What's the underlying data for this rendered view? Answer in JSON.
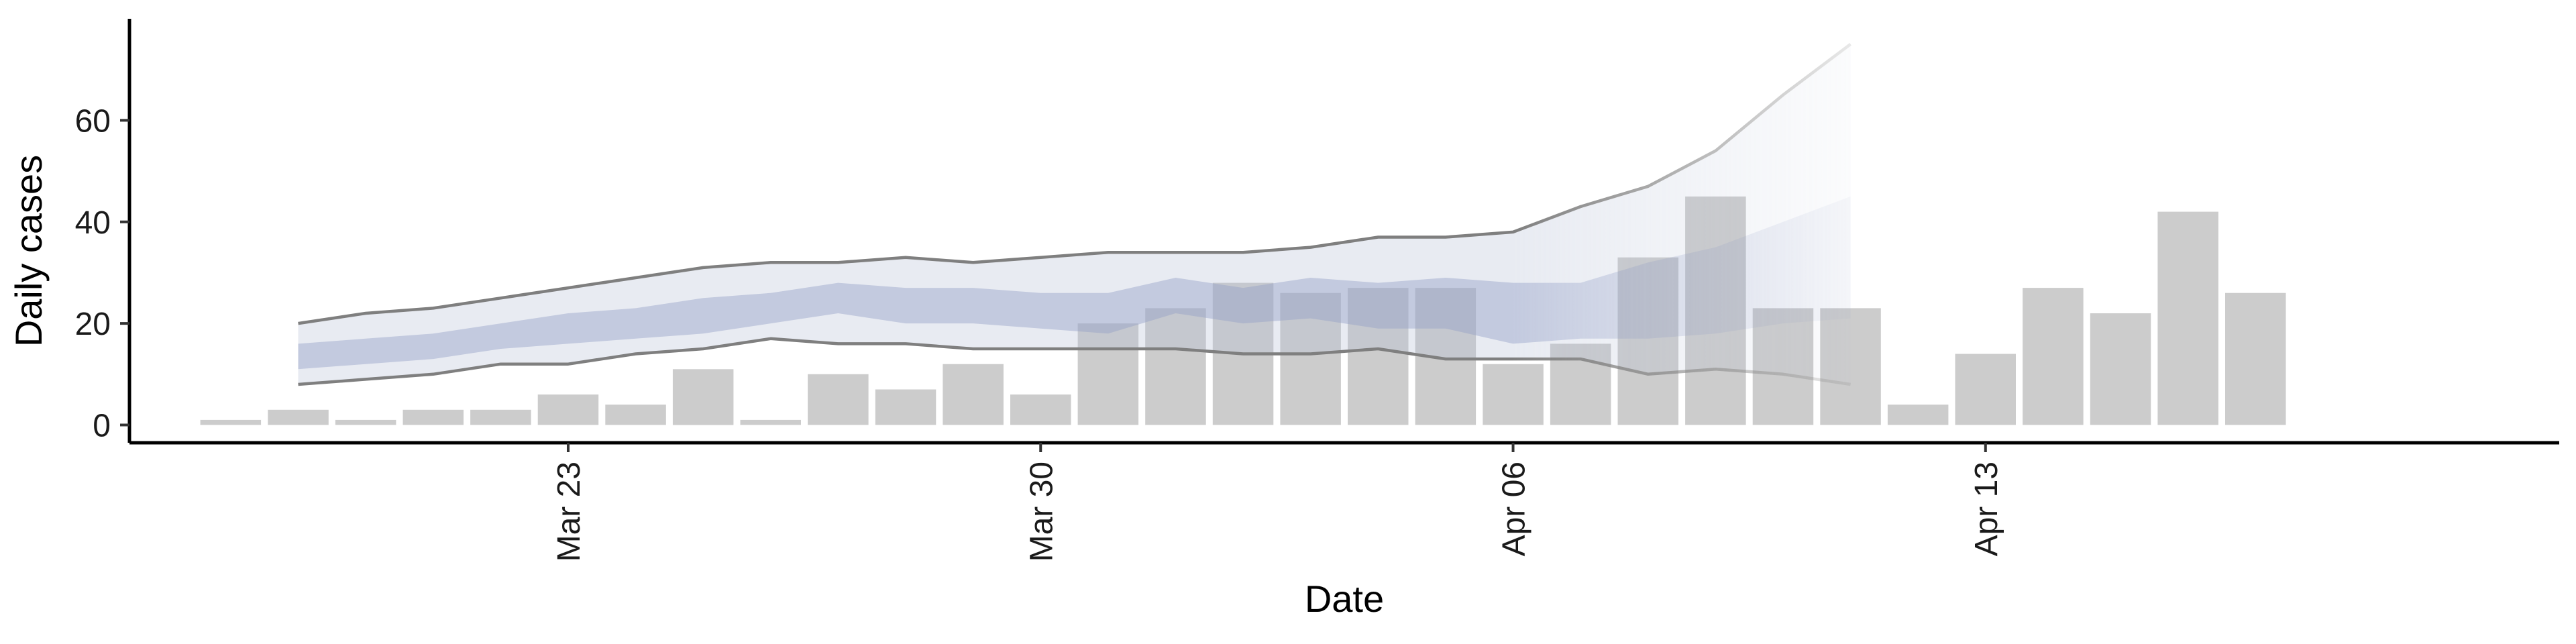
{
  "chart_data": {
    "type": "bar",
    "xlabel": "Date",
    "ylabel": "Daily cases",
    "ylim": [
      0,
      80
    ],
    "xlim": [
      "2020-03-16T12:00",
      "2020-04-21T12:00"
    ],
    "x_ticks": [
      {
        "date": "2020-03-23",
        "label": "Mar 23"
      },
      {
        "date": "2020-03-30",
        "label": "Mar 30"
      },
      {
        "date": "2020-04-06",
        "label": "Apr 06"
      },
      {
        "date": "2020-04-13",
        "label": "Apr 13"
      }
    ],
    "y_ticks": [
      0,
      20,
      40,
      60
    ],
    "grid": false,
    "colors": {
      "bars": "#cccccc",
      "band_outer": "#b9c0d6",
      "band_inner": "#8f9cc4",
      "bound_line": "#7f7f7f"
    },
    "bars": [
      {
        "date": "2020-03-18",
        "value": 1
      },
      {
        "date": "2020-03-19",
        "value": 3
      },
      {
        "date": "2020-03-20",
        "value": 1
      },
      {
        "date": "2020-03-21",
        "value": 3
      },
      {
        "date": "2020-03-22",
        "value": 3
      },
      {
        "date": "2020-03-23",
        "value": 6
      },
      {
        "date": "2020-03-24",
        "value": 4
      },
      {
        "date": "2020-03-25",
        "value": 11
      },
      {
        "date": "2020-03-26",
        "value": 1
      },
      {
        "date": "2020-03-27",
        "value": 10
      },
      {
        "date": "2020-03-28",
        "value": 7
      },
      {
        "date": "2020-03-29",
        "value": 12
      },
      {
        "date": "2020-03-30",
        "value": 6
      },
      {
        "date": "2020-03-31",
        "value": 20
      },
      {
        "date": "2020-04-01",
        "value": 23
      },
      {
        "date": "2020-04-02",
        "value": 28
      },
      {
        "date": "2020-04-03",
        "value": 26
      },
      {
        "date": "2020-04-04",
        "value": 27
      },
      {
        "date": "2020-04-05",
        "value": 27
      },
      {
        "date": "2020-04-06",
        "value": 12
      },
      {
        "date": "2020-04-07",
        "value": 16
      },
      {
        "date": "2020-04-08",
        "value": 33
      },
      {
        "date": "2020-04-09",
        "value": 45
      },
      {
        "date": "2020-04-10",
        "value": 23
      },
      {
        "date": "2020-04-11",
        "value": 23
      },
      {
        "date": "2020-04-12",
        "value": 4
      },
      {
        "date": "2020-04-13",
        "value": 14
      },
      {
        "date": "2020-04-14",
        "value": 27
      },
      {
        "date": "2020-04-15",
        "value": 22
      },
      {
        "date": "2020-04-16",
        "value": 42
      },
      {
        "date": "2020-04-17",
        "value": 26
      }
    ],
    "bands": {
      "dates": [
        "2020-03-19",
        "2020-03-20",
        "2020-03-21",
        "2020-03-22",
        "2020-03-23",
        "2020-03-24",
        "2020-03-25",
        "2020-03-26",
        "2020-03-27",
        "2020-03-28",
        "2020-03-29",
        "2020-03-30",
        "2020-03-31",
        "2020-04-01",
        "2020-04-02",
        "2020-04-03",
        "2020-04-04",
        "2020-04-05",
        "2020-04-06",
        "2020-04-07",
        "2020-04-08",
        "2020-04-09",
        "2020-04-10",
        "2020-04-11"
      ],
      "outer_upper": [
        20,
        22,
        23,
        25,
        27,
        29,
        31,
        32,
        32,
        33,
        32,
        33,
        34,
        34,
        34,
        35,
        37,
        37,
        38,
        43,
        47,
        54,
        65,
        75
      ],
      "outer_lower": [
        8,
        9,
        10,
        12,
        12,
        14,
        15,
        17,
        16,
        16,
        15,
        15,
        15,
        15,
        14,
        14,
        15,
        13,
        13,
        13,
        10,
        11,
        10,
        8
      ],
      "inner_upper": [
        16,
        17,
        18,
        20,
        22,
        23,
        25,
        26,
        28,
        27,
        27,
        26,
        26,
        29,
        27,
        29,
        28,
        29,
        28,
        28,
        32,
        35,
        40,
        45
      ],
      "inner_lower": [
        11,
        12,
        13,
        15,
        16,
        17,
        18,
        20,
        22,
        20,
        20,
        19,
        18,
        22,
        20,
        21,
        19,
        19,
        16,
        17,
        17,
        18,
        20,
        21
      ],
      "confidence_fade_start": "2020-04-06"
    }
  }
}
